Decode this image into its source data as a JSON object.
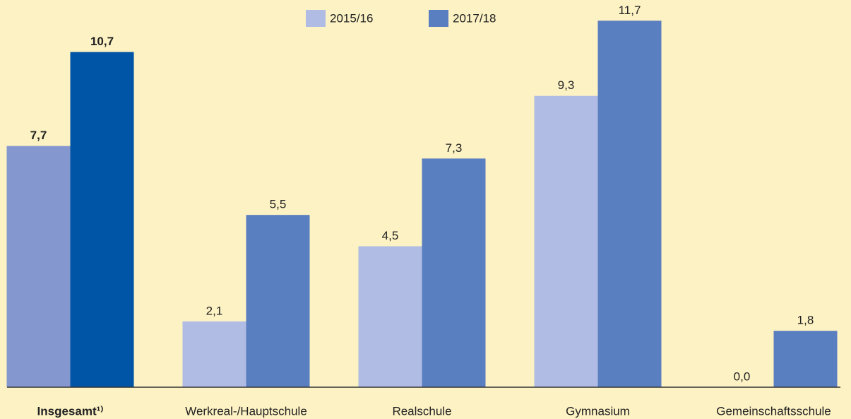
{
  "chart_data": {
    "type": "bar",
    "categories": [
      "Insgesamt¹⁾",
      "Werkreal-/Hauptschule",
      "Realschule",
      "Gymnasium",
      "Gemeinschaftsschule"
    ],
    "highlight": [
      true,
      false,
      false,
      false,
      false
    ],
    "series": [
      {
        "name": "2015/16",
        "color": "#b0bce4",
        "colors": [
          "#8597cf",
          "#b0bce4",
          "#b0bce4",
          "#b0bce4",
          "#b0bce4"
        ],
        "values": [
          7.7,
          2.1,
          4.5,
          9.3,
          0.0
        ],
        "value_labels": [
          "7,7",
          "2,1",
          "4,5",
          "9,3",
          "0,0"
        ]
      },
      {
        "name": "2017/18",
        "color": "#5a7fc0",
        "colors": [
          "#0055a6",
          "#5a7fc0",
          "#5a7fc0",
          "#5a7fc0",
          "#5a7fc0"
        ],
        "values": [
          10.7,
          5.5,
          7.3,
          11.7,
          1.8
        ],
        "value_labels": [
          "10,7",
          "5,5",
          "7,3",
          "11,7",
          "1,8"
        ]
      }
    ],
    "ylim": [
      0,
      12
    ],
    "legend": "top",
    "grid": false
  }
}
